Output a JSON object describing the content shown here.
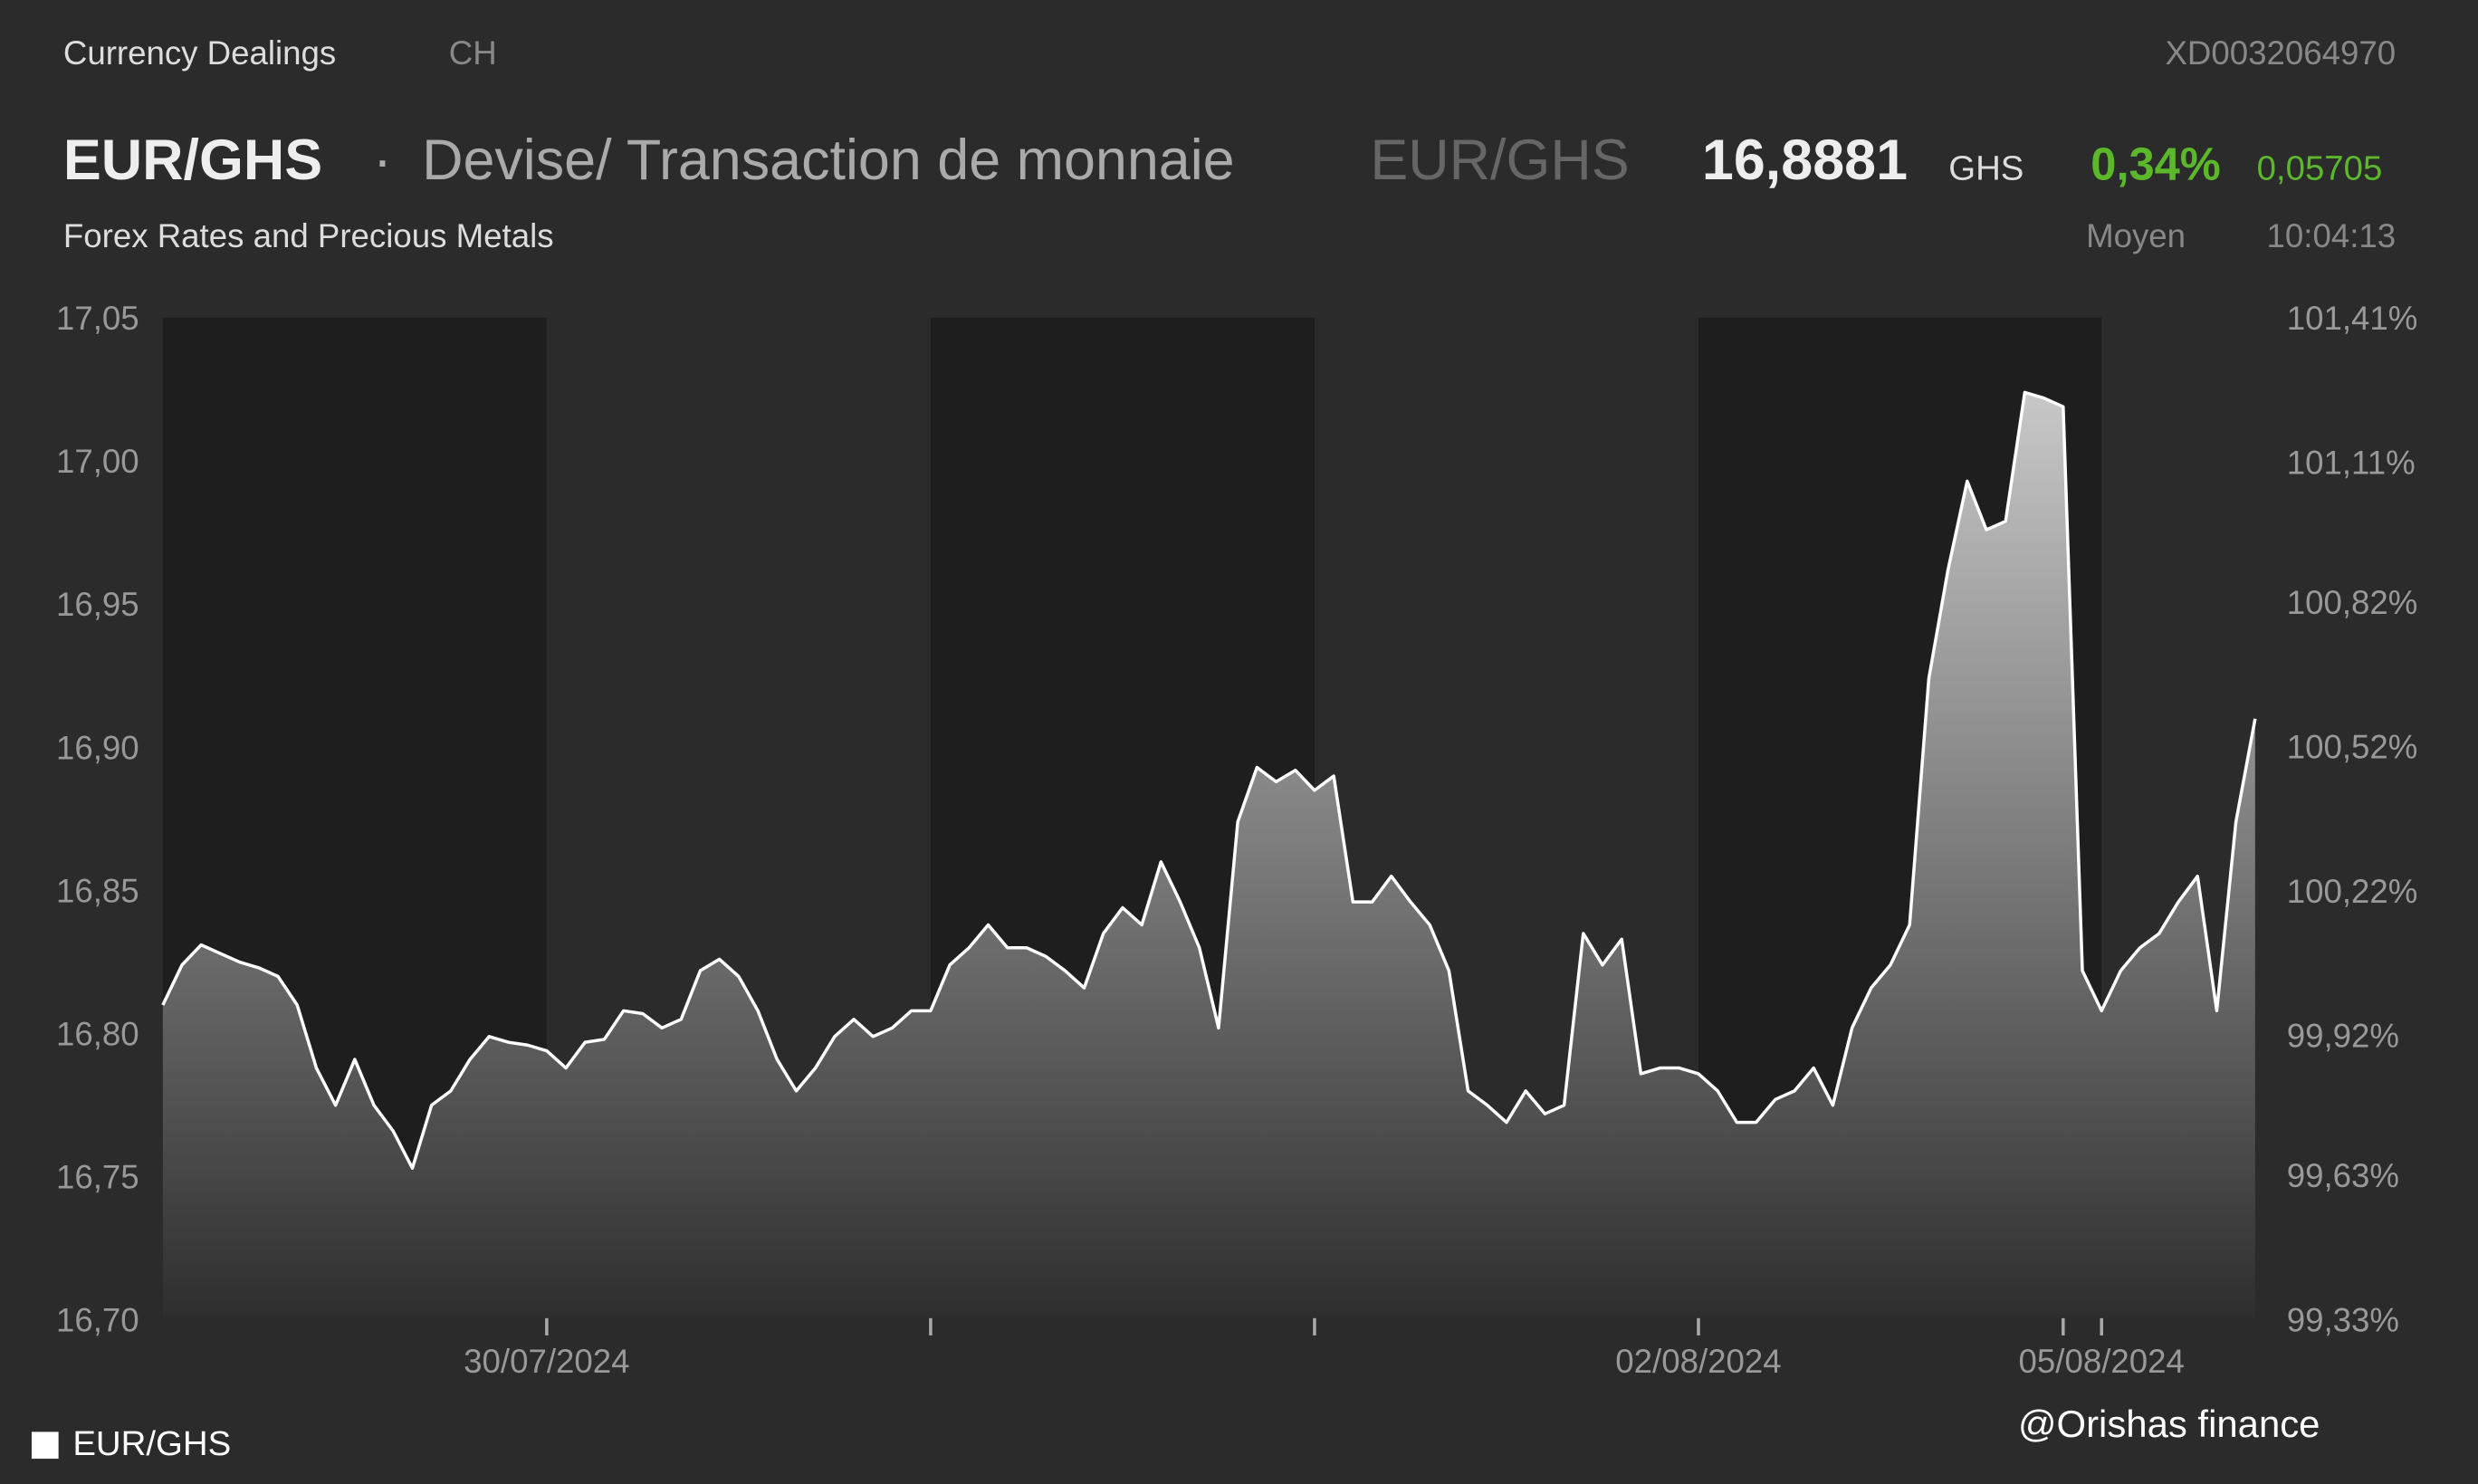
{
  "header": {
    "section": "Currency Dealings",
    "country": "CH",
    "isin": "XD0032064970",
    "symbol": "EUR/GHS",
    "separator": "·",
    "instrument_type": "Devise/ Transaction de monnaie",
    "symbol_alt": "EUR/GHS",
    "price": "16,8881",
    "currency": "GHS",
    "change_percent": "0,34%",
    "change_absolute": "0,05705",
    "market": "Forex Rates and Precious Metals",
    "price_type": "Moyen",
    "time": "10:04:13"
  },
  "chart_data": {
    "type": "area",
    "categories": [
      null,
      null,
      null,
      null,
      null,
      null,
      null,
      null,
      null,
      null,
      null,
      null,
      null,
      null,
      null,
      null,
      null,
      null,
      null,
      null,
      "30/07/2024",
      null,
      null,
      null,
      null,
      null,
      null,
      null,
      null,
      null,
      null,
      null,
      null,
      null,
      null,
      null,
      null,
      null,
      null,
      null,
      null,
      null,
      null,
      null,
      null,
      null,
      null,
      null,
      null,
      null,
      null,
      null,
      null,
      null,
      null,
      null,
      null,
      null,
      null,
      null,
      null,
      null,
      null,
      null,
      null,
      null,
      null,
      null,
      null,
      null,
      null,
      null,
      null,
      null,
      null,
      null,
      null,
      null,
      null,
      null,
      "02/08/2024",
      null,
      null,
      null,
      null,
      null,
      null,
      null,
      null,
      null,
      null,
      null,
      null,
      null,
      null,
      null,
      null,
      null,
      null,
      null,
      null,
      "05/08/2024",
      null,
      null,
      null,
      null,
      null,
      null,
      null,
      null
    ],
    "series": [
      {
        "name": "EUR/GHS",
        "color": "#ffffff",
        "values": [
          16.811,
          16.825,
          16.832,
          16.829,
          16.826,
          16.824,
          16.821,
          16.811,
          16.789,
          16.776,
          16.792,
          16.776,
          16.767,
          16.754,
          16.776,
          16.781,
          16.792,
          16.8,
          16.798,
          16.797,
          16.795,
          16.789,
          16.798,
          16.799,
          16.809,
          16.808,
          16.803,
          16.806,
          16.823,
          16.827,
          16.821,
          16.809,
          16.792,
          16.781,
          16.789,
          16.8,
          16.806,
          16.8,
          16.803,
          16.809,
          16.809,
          16.825,
          16.831,
          16.839,
          16.831,
          16.831,
          16.828,
          16.823,
          16.817,
          16.836,
          16.845,
          16.839,
          16.861,
          16.847,
          16.831,
          16.803,
          16.875,
          16.894,
          16.889,
          16.893,
          16.886,
          16.891,
          16.847,
          16.847,
          16.856,
          16.847,
          16.839,
          16.823,
          16.781,
          16.776,
          16.77,
          16.781,
          16.773,
          16.776,
          16.836,
          16.825,
          16.834,
          16.787,
          16.789,
          16.789,
          16.787,
          16.781,
          16.77,
          16.77,
          16.778,
          16.781,
          16.789,
          16.776,
          16.803,
          16.817,
          16.825,
          16.839,
          16.925,
          16.963,
          16.994,
          16.977,
          16.98,
          17.025,
          17.023,
          17.02,
          16.823,
          16.809,
          16.823,
          16.831,
          16.836,
          16.847,
          16.856,
          16.809,
          16.875,
          16.911
        ]
      }
    ],
    "ylim": [
      16.7,
      17.05
    ],
    "yticks": [
      {
        "value": 16.7,
        "label": "16,70"
      },
      {
        "value": 16.75,
        "label": "16,75"
      },
      {
        "value": 16.8,
        "label": "16,80"
      },
      {
        "value": 16.85,
        "label": "16,85"
      },
      {
        "value": 16.9,
        "label": "16,90"
      },
      {
        "value": 16.95,
        "label": "16,95"
      },
      {
        "value": 17.0,
        "label": "17,00"
      },
      {
        "value": 17.05,
        "label": "17,05"
      }
    ],
    "y2lim": [
      99.33,
      101.41
    ],
    "y2ticks": [
      {
        "value": 99.33,
        "label": "99,33%"
      },
      {
        "value": 99.63,
        "label": "99,63%"
      },
      {
        "value": 99.92,
        "label": "99,92%"
      },
      {
        "value": 100.22,
        "label": "100,22%"
      },
      {
        "value": 100.52,
        "label": "100,52%"
      },
      {
        "value": 100.82,
        "label": "100,82%"
      },
      {
        "value": 101.11,
        "label": "101,11%"
      },
      {
        "value": 101.41,
        "label": "101,41%"
      }
    ]
  },
  "watermark": "@Orishas finance"
}
